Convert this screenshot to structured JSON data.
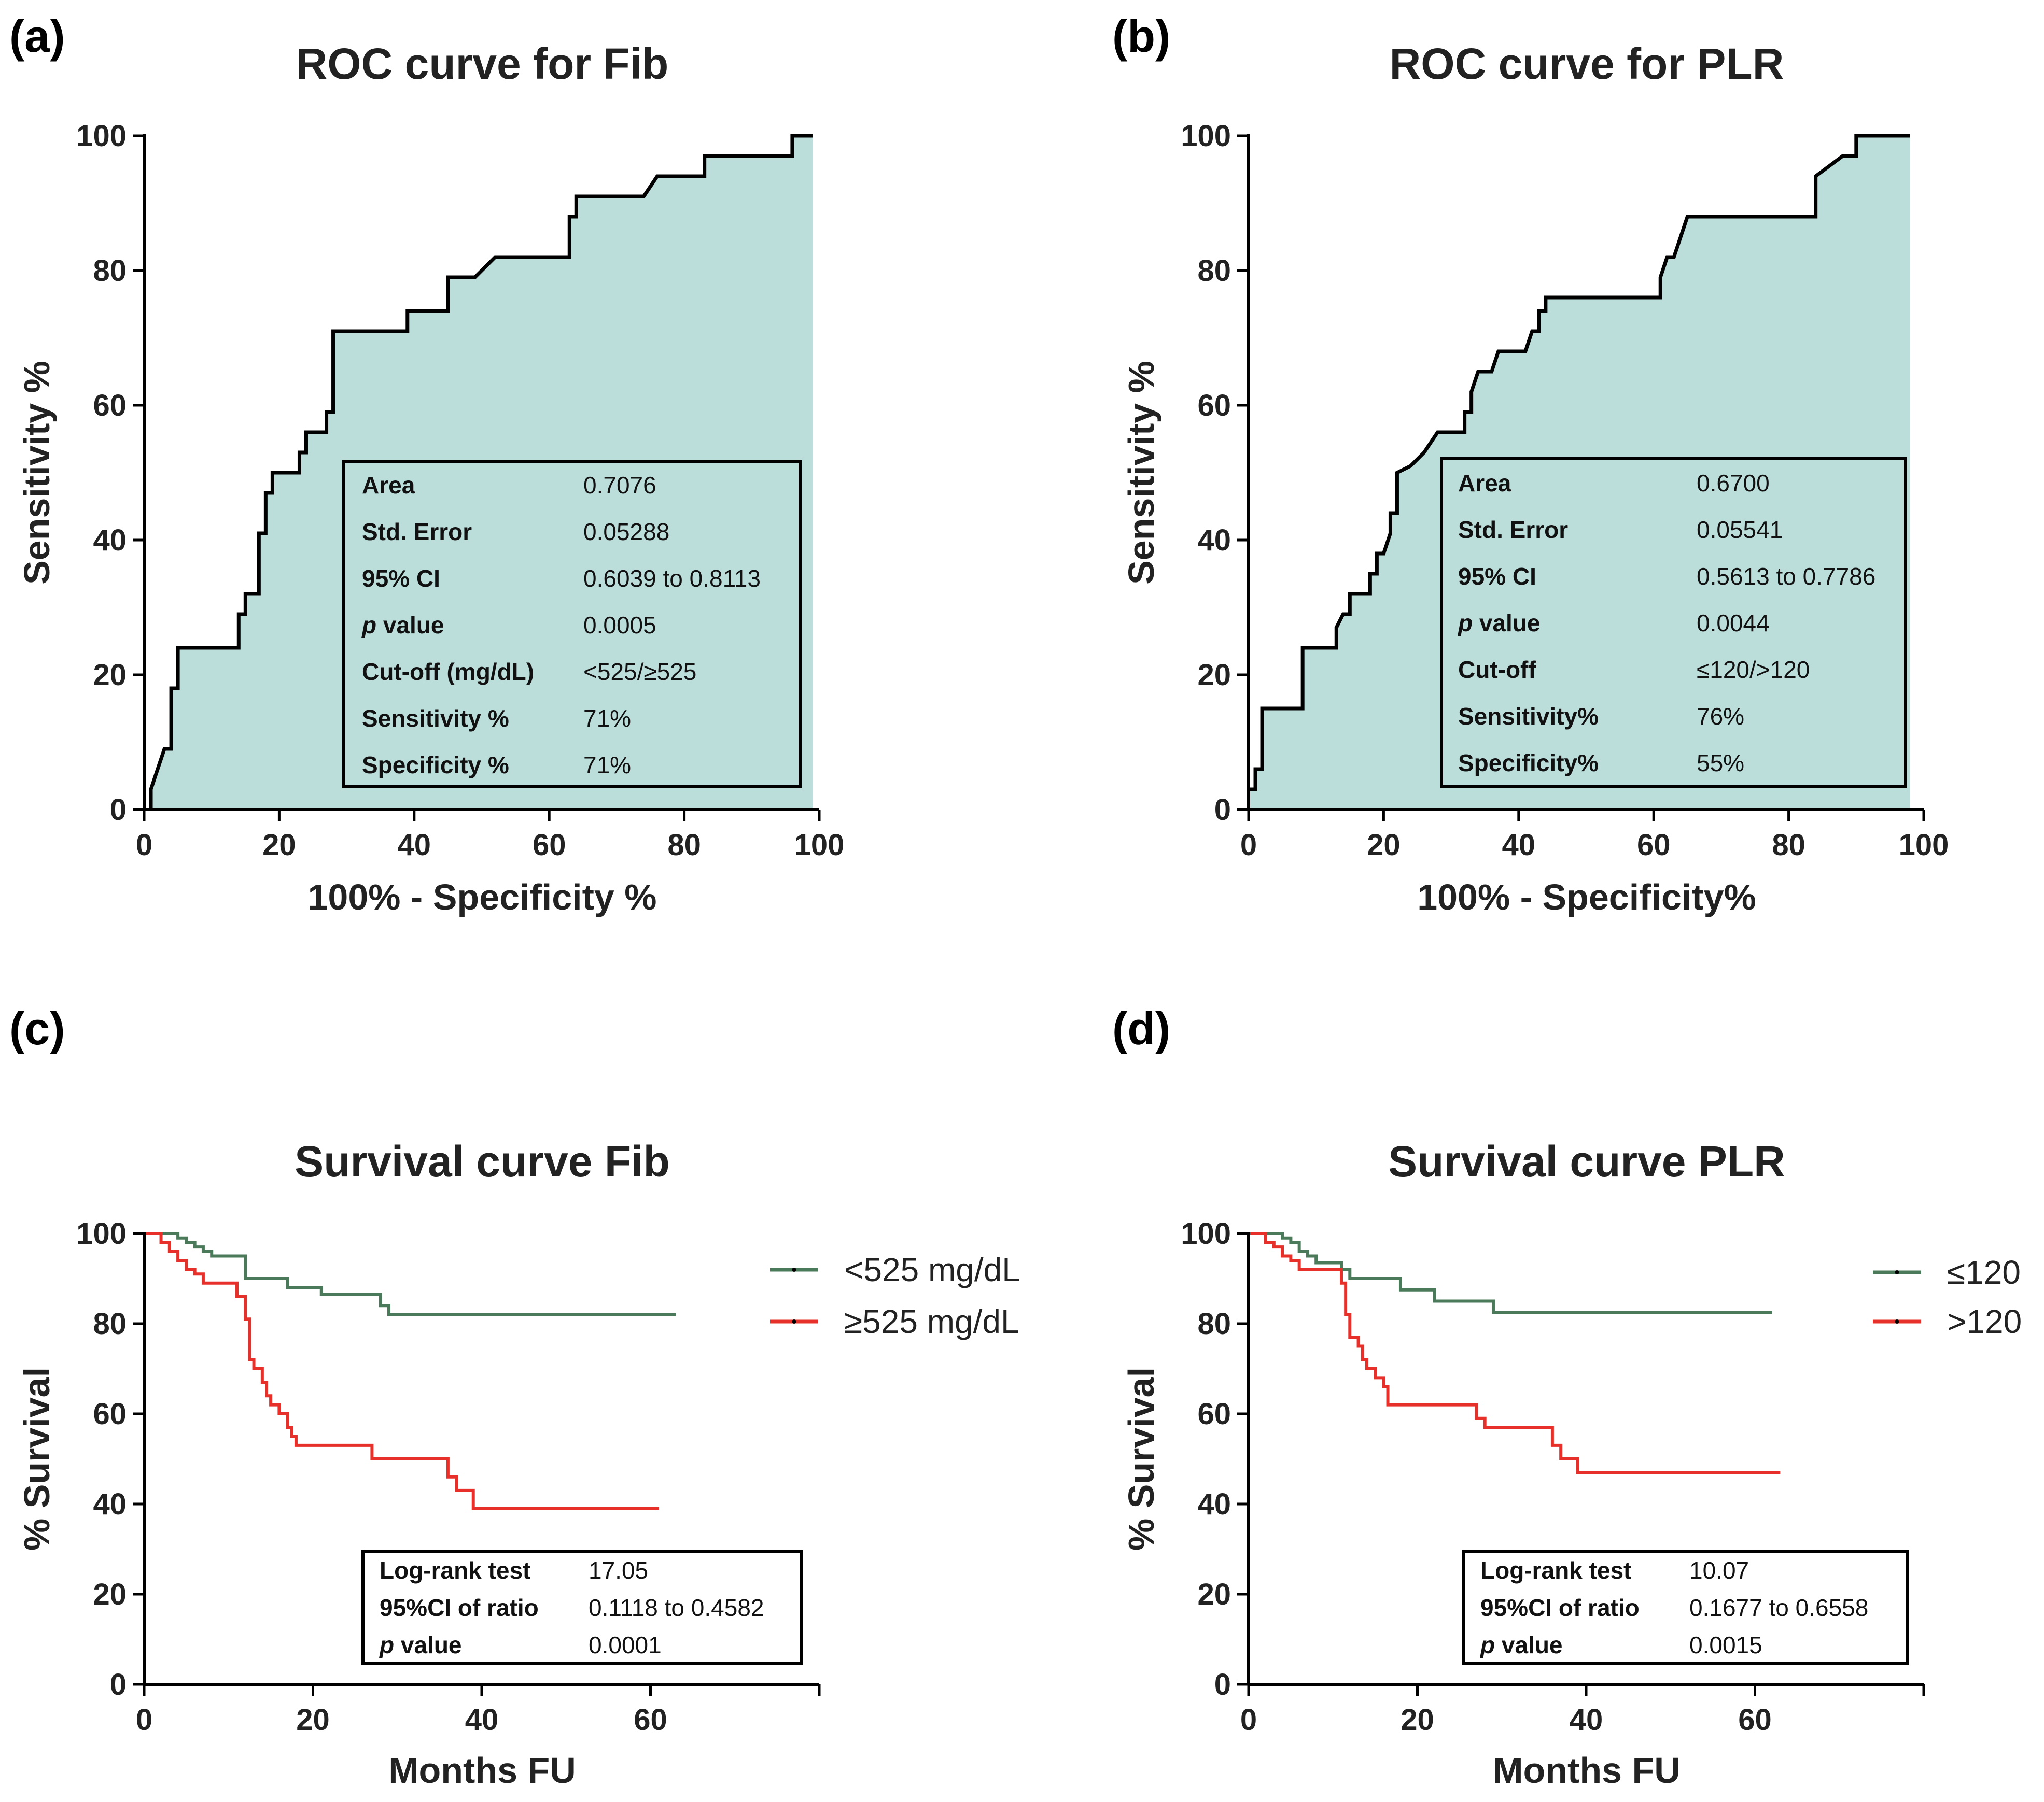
{
  "chart_data": [
    {
      "panel": "(a)",
      "type": "line",
      "subtype": "roc",
      "title": "ROC curve for Fib",
      "xlabel": "100%  - Specificity %",
      "ylabel": "Sensitivity %",
      "xlim": [
        0,
        100
      ],
      "ylim": [
        0,
        100
      ],
      "xticks": [
        0,
        20,
        40,
        60,
        80,
        100
      ],
      "yticks": [
        0,
        20,
        40,
        60,
        80,
        100
      ],
      "fill_color": "#bcdedb",
      "line_color": "#000000",
      "curve": [
        [
          1,
          0
        ],
        [
          1,
          3
        ],
        [
          2,
          6
        ],
        [
          3,
          9
        ],
        [
          4,
          9
        ],
        [
          4,
          18
        ],
        [
          5,
          18
        ],
        [
          5,
          24
        ],
        [
          14,
          24
        ],
        [
          14,
          29
        ],
        [
          15,
          29
        ],
        [
          15,
          32
        ],
        [
          17,
          32
        ],
        [
          17,
          41
        ],
        [
          18,
          41
        ],
        [
          18,
          47
        ],
        [
          19,
          47
        ],
        [
          19,
          50
        ],
        [
          23,
          50
        ],
        [
          23,
          53
        ],
        [
          24,
          53
        ],
        [
          24,
          56
        ],
        [
          27,
          56
        ],
        [
          27,
          59
        ],
        [
          28,
          59
        ],
        [
          28,
          71
        ],
        [
          39,
          71
        ],
        [
          39,
          74
        ],
        [
          45,
          74
        ],
        [
          45,
          79
        ],
        [
          49,
          79
        ],
        [
          52,
          82
        ],
        [
          63,
          82
        ],
        [
          63,
          88
        ],
        [
          64,
          88
        ],
        [
          64,
          91
        ],
        [
          74,
          91
        ],
        [
          76,
          94
        ],
        [
          83,
          94
        ],
        [
          83,
          97
        ],
        [
          96,
          97
        ],
        [
          96,
          100
        ],
        [
          99,
          100
        ]
      ],
      "stats": [
        {
          "key": "Area",
          "value": "0.7076"
        },
        {
          "key": "Std. Error",
          "value": "0.05288"
        },
        {
          "key": "95% CI",
          "value": "0.6039  to 0.8113"
        },
        {
          "key": "value",
          "key_prefix": "p",
          "value": "0.0005"
        },
        {
          "key": "Cut-off (mg/dL)",
          "value": "<525/≥525"
        },
        {
          "key": "Sensitivity  %",
          "value": "71%"
        },
        {
          "key": "Specificity  %",
          "value": "71%"
        }
      ]
    },
    {
      "panel": "(b)",
      "type": "line",
      "subtype": "roc",
      "title": "ROC curve for PLR",
      "xlabel": "100%  - Specificity%",
      "ylabel": "Sensitivity %",
      "xlim": [
        0,
        100
      ],
      "ylim": [
        0,
        100
      ],
      "xticks": [
        0,
        20,
        40,
        60,
        80,
        100
      ],
      "yticks": [
        0,
        20,
        40,
        60,
        80,
        100
      ],
      "fill_color": "#bcdedb",
      "line_color": "#000000",
      "curve": [
        [
          0,
          3
        ],
        [
          1,
          3
        ],
        [
          1,
          6
        ],
        [
          2,
          6
        ],
        [
          2,
          15
        ],
        [
          8,
          15
        ],
        [
          8,
          24
        ],
        [
          13,
          24
        ],
        [
          13,
          27
        ],
        [
          14,
          29
        ],
        [
          15,
          29
        ],
        [
          15,
          32
        ],
        [
          18,
          32
        ],
        [
          18,
          35
        ],
        [
          19,
          35
        ],
        [
          19,
          38
        ],
        [
          20,
          38
        ],
        [
          21,
          41
        ],
        [
          21,
          44
        ],
        [
          22,
          44
        ],
        [
          22,
          50
        ],
        [
          24,
          51
        ],
        [
          26,
          53
        ],
        [
          28,
          56
        ],
        [
          32,
          56
        ],
        [
          32,
          59
        ],
        [
          33,
          59
        ],
        [
          33,
          62
        ],
        [
          34,
          65
        ],
        [
          36,
          65
        ],
        [
          37,
          68
        ],
        [
          41,
          68
        ],
        [
          42,
          71
        ],
        [
          43,
          71
        ],
        [
          43,
          74
        ],
        [
          44,
          74
        ],
        [
          44,
          76
        ],
        [
          61,
          76
        ],
        [
          61,
          79
        ],
        [
          62,
          82
        ],
        [
          63,
          82
        ],
        [
          65,
          88
        ],
        [
          84,
          88
        ],
        [
          84,
          94
        ],
        [
          88,
          97
        ],
        [
          90,
          97
        ],
        [
          90,
          100
        ],
        [
          98,
          100
        ]
      ],
      "stats": [
        {
          "key": "Area",
          "value": "0.6700"
        },
        {
          "key": "Std. Error",
          "value": "0.05541"
        },
        {
          "key": "95% CI",
          "value": "0.5613  to 0.7786"
        },
        {
          "key": "value",
          "key_prefix": "p",
          "value": "0.0044"
        },
        {
          "key": "Cut-off",
          "value": "≤120/>120"
        },
        {
          "key": "Sensitivity%",
          "value": "76%"
        },
        {
          "key": "Specificity%",
          "value": "55%"
        }
      ]
    },
    {
      "panel": "(c)",
      "type": "line",
      "subtype": "survival",
      "title": "Survival curve Fib",
      "xlabel": "Months FU",
      "ylabel": "% Survival",
      "xlim": [
        0,
        80
      ],
      "ylim": [
        0,
        100
      ],
      "xticks": [
        0,
        20,
        40,
        60
      ],
      "yticks": [
        0,
        20,
        40,
        60,
        80,
        100
      ],
      "series": [
        {
          "name": "<525 mg/dL",
          "color": "#4a7a5a",
          "points": [
            [
              0,
              100
            ],
            [
              4,
              100
            ],
            [
              4,
              99
            ],
            [
              5,
              99
            ],
            [
              5,
              98
            ],
            [
              6,
              98
            ],
            [
              6,
              97
            ],
            [
              7,
              97
            ],
            [
              7,
              96
            ],
            [
              8,
              96
            ],
            [
              8,
              95
            ],
            [
              12,
              95
            ],
            [
              12,
              90
            ],
            [
              17,
              90
            ],
            [
              17,
              88
            ],
            [
              21,
              88
            ],
            [
              21,
              86.5
            ],
            [
              26,
              86.5
            ],
            [
              28,
              86.5
            ],
            [
              28,
              84
            ],
            [
              29,
              84
            ],
            [
              29,
              82
            ],
            [
              63,
              82
            ]
          ]
        },
        {
          "name": "≥525 mg/dL",
          "color": "#e8302a",
          "points": [
            [
              0,
              100
            ],
            [
              2,
              100
            ],
            [
              2,
              98
            ],
            [
              3,
              98
            ],
            [
              3,
              96
            ],
            [
              4,
              96
            ],
            [
              4,
              94
            ],
            [
              5,
              94
            ],
            [
              5,
              92
            ],
            [
              6,
              92
            ],
            [
              6,
              91
            ],
            [
              7,
              91
            ],
            [
              7,
              89
            ],
            [
              11,
              89
            ],
            [
              11,
              86
            ],
            [
              12,
              86
            ],
            [
              12,
              81
            ],
            [
              12.5,
              81
            ],
            [
              12.5,
              72
            ],
            [
              13,
              72
            ],
            [
              13,
              70
            ],
            [
              14,
              70
            ],
            [
              14,
              67
            ],
            [
              14.5,
              67
            ],
            [
              14.5,
              64
            ],
            [
              15,
              64
            ],
            [
              15,
              62
            ],
            [
              16,
              62
            ],
            [
              16,
              60
            ],
            [
              17,
              60
            ],
            [
              17,
              57
            ],
            [
              17.5,
              57
            ],
            [
              17.5,
              55
            ],
            [
              18,
              55
            ],
            [
              18,
              53
            ],
            [
              27,
              53
            ],
            [
              27,
              50
            ],
            [
              36,
              50
            ],
            [
              36,
              46
            ],
            [
              37,
              46
            ],
            [
              37,
              43
            ],
            [
              39,
              43
            ],
            [
              39,
              39
            ],
            [
              61,
              39
            ]
          ]
        }
      ],
      "stats": [
        {
          "key": "Log-rank test",
          "value": "17.05"
        },
        {
          "key": "95%CI of ratio",
          "value": "0.1118  to 0.4582"
        },
        {
          "key": "value",
          "key_prefix": "p",
          "value": "0.0001"
        }
      ]
    },
    {
      "panel": "(d)",
      "type": "line",
      "subtype": "survival",
      "title": "Survival curve PLR",
      "xlabel": "Months FU",
      "ylabel": "% Survival",
      "xlim": [
        0,
        80
      ],
      "ylim": [
        0,
        100
      ],
      "xticks": [
        0,
        20,
        40,
        60
      ],
      "yticks": [
        0,
        20,
        40,
        60,
        80,
        100
      ],
      "series": [
        {
          "name": "≤120",
          "color": "#4a7a5a",
          "points": [
            [
              0,
              100
            ],
            [
              4,
              100
            ],
            [
              4,
              99
            ],
            [
              5,
              99
            ],
            [
              5,
              98
            ],
            [
              6,
              98
            ],
            [
              6,
              96
            ],
            [
              7,
              96
            ],
            [
              7,
              95
            ],
            [
              8,
              95
            ],
            [
              8,
              93.5
            ],
            [
              11,
              93.5
            ],
            [
              11,
              92
            ],
            [
              12,
              92
            ],
            [
              12,
              90
            ],
            [
              18,
              90
            ],
            [
              18,
              87.5
            ],
            [
              22,
              87.5
            ],
            [
              22,
              85
            ],
            [
              29,
              85
            ],
            [
              29,
              82.5
            ],
            [
              62,
              82.5
            ]
          ]
        },
        {
          "name": ">120",
          "color": "#e8302a",
          "points": [
            [
              0,
              100
            ],
            [
              2,
              100
            ],
            [
              2,
              98
            ],
            [
              3,
              98
            ],
            [
              3,
              97
            ],
            [
              4,
              97
            ],
            [
              4,
              95
            ],
            [
              5,
              95
            ],
            [
              5,
              94
            ],
            [
              6,
              94
            ],
            [
              6,
              92
            ],
            [
              11,
              92
            ],
            [
              11,
              89
            ],
            [
              11.5,
              89
            ],
            [
              11.5,
              82
            ],
            [
              12,
              82
            ],
            [
              12,
              77
            ],
            [
              13,
              77
            ],
            [
              13,
              75
            ],
            [
              13.5,
              75
            ],
            [
              13.5,
              72
            ],
            [
              14,
              72
            ],
            [
              14,
              70
            ],
            [
              15,
              70
            ],
            [
              15,
              68
            ],
            [
              16,
              68
            ],
            [
              16,
              66
            ],
            [
              16.5,
              66
            ],
            [
              16.5,
              62
            ],
            [
              27,
              62
            ],
            [
              27,
              59
            ],
            [
              28,
              59
            ],
            [
              28,
              57
            ],
            [
              36,
              57
            ],
            [
              36,
              53
            ],
            [
              37,
              53
            ],
            [
              37,
              50
            ],
            [
              39,
              50
            ],
            [
              39,
              47
            ],
            [
              63,
              47
            ]
          ]
        }
      ],
      "stats": [
        {
          "key": "Log-rank test",
          "value": "10.07"
        },
        {
          "key": "95%CI of ratio",
          "value": "0.1677  to 0.6558"
        },
        {
          "key": "value",
          "key_prefix": "p",
          "value": "0.0015"
        }
      ]
    }
  ]
}
